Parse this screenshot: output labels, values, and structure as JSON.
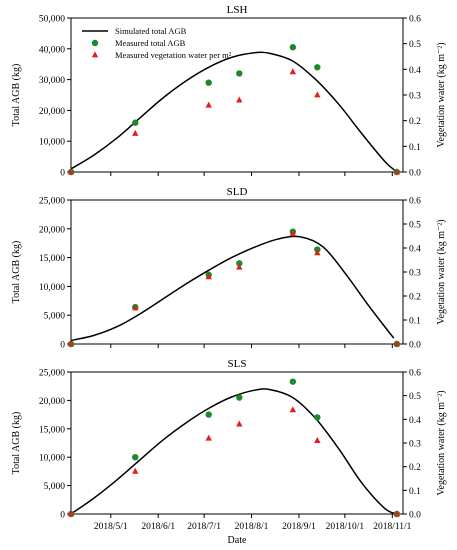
{
  "chart_data": [
    {
      "type": "line+scatter",
      "title": "LSH",
      "ylabel": "Total AGB (kg)",
      "y2label": "Vegetation water (kg m⁻²)",
      "xlabel": "",
      "ylim": [
        0,
        50000
      ],
      "y2lim": [
        0,
        0.6
      ],
      "yticks": [
        "0",
        "10,000",
        "20,000",
        "30,000",
        "40,000",
        "50,000"
      ],
      "y2ticks": [
        "0.0",
        "0.1",
        "0.2",
        "0.3",
        "0.4",
        "0.5",
        "0.6"
      ],
      "xlim": [
        "2018-04-05",
        "2018-11-08"
      ],
      "legend": {
        "placement": "top-left",
        "entries": [
          "Simulated total AGB",
          "Measured total AGB",
          "Measured vegetation water per m²"
        ]
      },
      "series": [
        {
          "name": "Simulated total AGB",
          "kind": "line",
          "axis": "left",
          "color": "#000000",
          "x": [
            "2018-04-05",
            "2018-04-20",
            "2018-05-05",
            "2018-05-20",
            "2018-06-04",
            "2018-06-19",
            "2018-07-04",
            "2018-07-19",
            "2018-08-03",
            "2018-08-13",
            "2018-08-28",
            "2018-09-12",
            "2018-09-27",
            "2018-10-12",
            "2018-10-27",
            "2018-11-04"
          ],
          "y": [
            1000,
            5500,
            11000,
            17500,
            24000,
            29500,
            34000,
            37200,
            38700,
            38500,
            36000,
            30000,
            22000,
            12500,
            3500,
            0
          ]
        },
        {
          "name": "Measured total AGB",
          "kind": "scatter",
          "marker": "circle",
          "axis": "left",
          "color": "#1b8a2e",
          "x": [
            "2018-04-05",
            "2018-05-17",
            "2018-07-04",
            "2018-07-24",
            "2018-08-28",
            "2018-09-13",
            "2018-11-04"
          ],
          "y": [
            0,
            16000,
            29000,
            32000,
            40500,
            34000,
            0
          ]
        },
        {
          "name": "Measured vegetation water per m²",
          "kind": "scatter",
          "marker": "triangle",
          "axis": "right",
          "color": "#e0201b",
          "x": [
            "2018-04-05",
            "2018-05-17",
            "2018-07-04",
            "2018-07-24",
            "2018-08-28",
            "2018-09-13",
            "2018-11-04"
          ],
          "y": [
            0.0,
            0.15,
            0.26,
            0.28,
            0.39,
            0.3,
            0.0
          ]
        }
      ]
    },
    {
      "type": "line+scatter",
      "title": "SLD",
      "ylabel": "Total AGB (kg)",
      "y2label": "Vegetation water (kg m⁻²)",
      "xlabel": "",
      "ylim": [
        0,
        25000
      ],
      "y2lim": [
        0,
        0.6
      ],
      "yticks": [
        "0",
        "5,000",
        "10,000",
        "15,000",
        "20,000",
        "25,000"
      ],
      "y2ticks": [
        "0.0",
        "0.1",
        "0.2",
        "0.3",
        "0.4",
        "0.5",
        "0.6"
      ],
      "xlim": [
        "2018-04-05",
        "2018-11-08"
      ],
      "series": [
        {
          "name": "Simulated total AGB",
          "kind": "line",
          "axis": "left",
          "color": "#000000",
          "x": [
            "2018-04-05",
            "2018-04-20",
            "2018-05-05",
            "2018-05-20",
            "2018-06-04",
            "2018-06-19",
            "2018-07-04",
            "2018-07-19",
            "2018-08-03",
            "2018-08-18",
            "2018-09-02",
            "2018-09-17",
            "2018-10-02",
            "2018-10-17",
            "2018-11-02"
          ],
          "y": [
            600,
            1500,
            3000,
            5200,
            7800,
            10400,
            12800,
            15000,
            16800,
            18200,
            18600,
            16800,
            12000,
            6500,
            1000
          ]
        },
        {
          "name": "Measured total AGB",
          "kind": "scatter",
          "marker": "circle",
          "axis": "left",
          "color": "#1b8a2e",
          "x": [
            "2018-04-05",
            "2018-05-17",
            "2018-07-04",
            "2018-07-24",
            "2018-08-28",
            "2018-09-13",
            "2018-11-04"
          ],
          "y": [
            0,
            6400,
            12000,
            14000,
            19500,
            16400,
            0
          ]
        },
        {
          "name": "Measured vegetation water per m²",
          "kind": "scatter",
          "marker": "triangle",
          "axis": "right",
          "color": "#e0201b",
          "x": [
            "2018-04-05",
            "2018-05-17",
            "2018-07-04",
            "2018-07-24",
            "2018-08-28",
            "2018-09-13",
            "2018-11-04"
          ],
          "y": [
            0.0,
            0.15,
            0.28,
            0.32,
            0.46,
            0.38,
            0.0
          ]
        }
      ]
    },
    {
      "type": "line+scatter",
      "title": "SLS",
      "ylabel": "Total AGB (kg)",
      "y2label": "Vegetation water (kg m⁻²)",
      "xlabel": "Date",
      "ylim": [
        0,
        25000
      ],
      "y2lim": [
        0,
        0.6
      ],
      "yticks": [
        "0",
        "5,000",
        "10,000",
        "15,000",
        "20,000",
        "25,000"
      ],
      "y2ticks": [
        "0.0",
        "0.1",
        "0.2",
        "0.3",
        "0.4",
        "0.5",
        "0.6"
      ],
      "xlim": [
        "2018-04-05",
        "2018-11-08"
      ],
      "xticks": [
        "2018/5/1",
        "2018/6/1",
        "2018/7/1",
        "2018/8/1",
        "2018/9/1",
        "2018/10/1",
        "2018/11/1"
      ],
      "series": [
        {
          "name": "Simulated total AGB",
          "kind": "line",
          "axis": "left",
          "color": "#000000",
          "x": [
            "2018-04-05",
            "2018-04-20",
            "2018-05-05",
            "2018-05-20",
            "2018-06-04",
            "2018-06-19",
            "2018-07-04",
            "2018-07-19",
            "2018-08-03",
            "2018-08-13",
            "2018-08-28",
            "2018-09-12",
            "2018-09-27",
            "2018-10-12",
            "2018-10-27",
            "2018-11-04"
          ],
          "y": [
            0,
            2800,
            6000,
            9500,
            13000,
            16000,
            18600,
            20600,
            21800,
            21900,
            20500,
            16800,
            11500,
            5500,
            1000,
            0
          ]
        },
        {
          "name": "Measured total AGB",
          "kind": "scatter",
          "marker": "circle",
          "axis": "left",
          "color": "#1b8a2e",
          "x": [
            "2018-04-05",
            "2018-05-17",
            "2018-07-04",
            "2018-07-24",
            "2018-08-28",
            "2018-09-13",
            "2018-11-04"
          ],
          "y": [
            0,
            10000,
            17500,
            20500,
            23300,
            17000,
            0
          ]
        },
        {
          "name": "Measured vegetation water per m²",
          "kind": "scatter",
          "marker": "triangle",
          "axis": "right",
          "color": "#e0201b",
          "x": [
            "2018-04-05",
            "2018-05-17",
            "2018-07-04",
            "2018-07-24",
            "2018-08-28",
            "2018-09-13",
            "2018-11-04"
          ],
          "y": [
            0.0,
            0.18,
            0.32,
            0.38,
            0.44,
            0.31,
            0.0
          ]
        }
      ]
    }
  ]
}
